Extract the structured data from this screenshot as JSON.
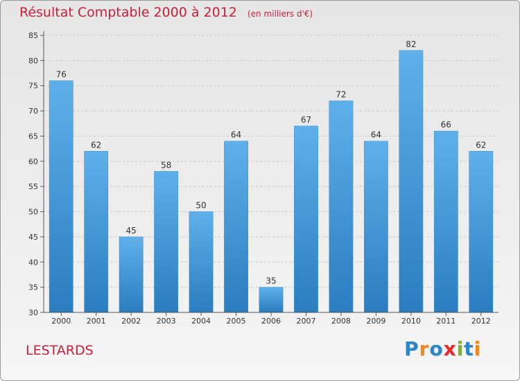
{
  "title": "Résultat Comptable 2000 à 2012",
  "unit": "(en milliers d'€)",
  "commune": "LESTARDS",
  "brand": {
    "letters": [
      {
        "ch": "P",
        "color": "#2a86c8"
      },
      {
        "ch": "r",
        "color": "#f08a1c"
      },
      {
        "ch": "o",
        "color": "#2a86c8"
      },
      {
        "ch": "x",
        "color": "#e8282a"
      },
      {
        "ch": "i",
        "color": "#7ab62a"
      },
      {
        "ch": "t",
        "color": "#2a86c8"
      },
      {
        "ch": "i",
        "color": "#f08a1c"
      }
    ]
  },
  "colors": {
    "bar_top": "#5fb0ea",
    "bar_bottom": "#2a7dbf",
    "title": "#c8203a",
    "grid": "#c9c9c9"
  },
  "chart_data": {
    "type": "bar",
    "categories": [
      "2000",
      "2001",
      "2002",
      "2003",
      "2004",
      "2005",
      "2006",
      "2007",
      "2008",
      "2009",
      "2010",
      "2011",
      "2012"
    ],
    "values": [
      76,
      62,
      45,
      58,
      50,
      64,
      35,
      67,
      72,
      64,
      82,
      66,
      62
    ],
    "title": "Résultat Comptable 2000 à 2012",
    "ylim": [
      30,
      85
    ],
    "yticks": [
      30,
      35,
      40,
      45,
      50,
      55,
      60,
      65,
      70,
      75,
      80,
      85
    ],
    "grid": true,
    "data_labels": true
  }
}
